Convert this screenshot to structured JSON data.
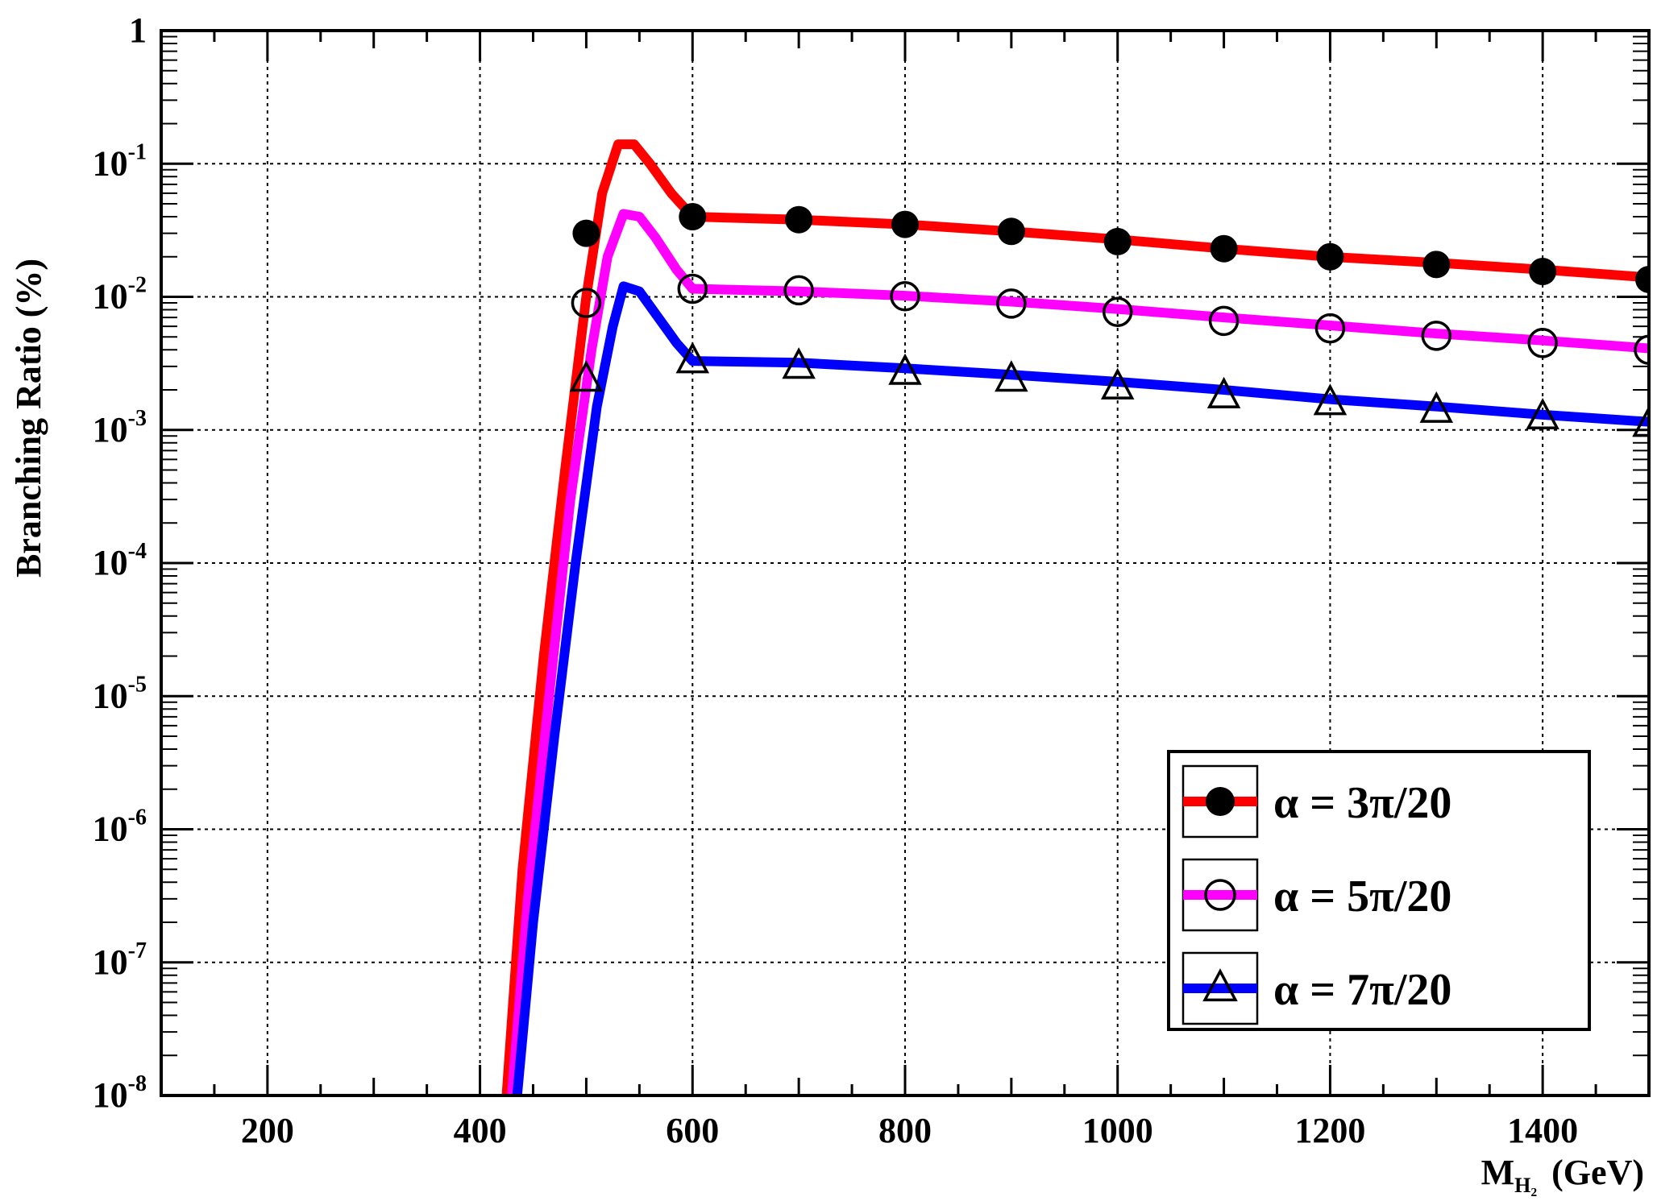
{
  "chart_data": {
    "type": "line",
    "title": "",
    "xlabel": {
      "main": "M",
      "sub": "H₂",
      "unit": "(GeV)"
    },
    "ylabel": "Branching Ratio (%)",
    "xlim": [
      100,
      1500
    ],
    "ylim": [
      1e-08,
      1
    ],
    "yscale": "log",
    "grid": true,
    "legend_position": "bottom-right",
    "xticks": [
      200,
      400,
      600,
      800,
      1000,
      1200,
      1400
    ],
    "xtick_labels": [
      "200",
      "400",
      "600",
      "800",
      "1000",
      "1200",
      "1400"
    ],
    "yticks": [
      {
        "value": 1,
        "base": "1",
        "exp": ""
      },
      {
        "value": 0.1,
        "base": "10",
        "exp": "-1"
      },
      {
        "value": 0.01,
        "base": "10",
        "exp": "-2"
      },
      {
        "value": 0.001,
        "base": "10",
        "exp": "-3"
      },
      {
        "value": 0.0001,
        "base": "10",
        "exp": "-4"
      },
      {
        "value": 1e-05,
        "base": "10",
        "exp": "-5"
      },
      {
        "value": 1e-06,
        "base": "10",
        "exp": "-6"
      },
      {
        "value": 1e-07,
        "base": "10",
        "exp": "-7"
      },
      {
        "value": 1e-08,
        "base": "10",
        "exp": "-8"
      }
    ],
    "series": [
      {
        "name": "α = 3π/20",
        "color": "#ff0000",
        "marker": "filled-circle",
        "curve": {
          "x": [
            425,
            440,
            460,
            480,
            500,
            515,
            530,
            545,
            560,
            580,
            600,
            700,
            800,
            900,
            1000,
            1100,
            1200,
            1300,
            1400,
            1500
          ],
          "y": [
            1e-08,
            5e-07,
            2e-05,
            0.0005,
            0.01,
            0.06,
            0.14,
            0.14,
            0.1,
            0.06,
            0.04,
            0.038,
            0.035,
            0.031,
            0.027,
            0.023,
            0.02,
            0.018,
            0.016,
            0.014
          ]
        },
        "points": {
          "x": [
            500,
            600,
            700,
            800,
            900,
            1000,
            1100,
            1200,
            1300,
            1400,
            1500
          ],
          "y": [
            0.03,
            0.04,
            0.038,
            0.035,
            0.031,
            0.026,
            0.023,
            0.02,
            0.0175,
            0.0155,
            0.0135
          ]
        }
      },
      {
        "name": "α = 5π/20",
        "color": "#ff00ff",
        "marker": "open-circle",
        "curve": {
          "x": [
            430,
            445,
            465,
            485,
            505,
            520,
            535,
            550,
            565,
            585,
            600,
            700,
            800,
            900,
            1000,
            1100,
            1200,
            1300,
            1400,
            1500
          ],
          "y": [
            1e-08,
            3e-07,
            1e-05,
            0.0003,
            0.004,
            0.02,
            0.042,
            0.04,
            0.028,
            0.016,
            0.0115,
            0.011,
            0.0102,
            0.0092,
            0.0081,
            0.007,
            0.0061,
            0.0053,
            0.0047,
            0.0041
          ]
        },
        "points": {
          "x": [
            500,
            600,
            700,
            800,
            900,
            1000,
            1100,
            1200,
            1300,
            1400,
            1500
          ],
          "y": [
            0.009,
            0.0115,
            0.0112,
            0.0101,
            0.0089,
            0.0077,
            0.0066,
            0.0058,
            0.0051,
            0.0045,
            0.004
          ]
        }
      },
      {
        "name": "α = 7π/20",
        "color": "#0000ff",
        "marker": "open-triangle",
        "curve": {
          "x": [
            435,
            450,
            470,
            490,
            510,
            525,
            535,
            550,
            565,
            585,
            600,
            700,
            800,
            900,
            1000,
            1100,
            1200,
            1300,
            1400,
            1500
          ],
          "y": [
            1e-08,
            2e-07,
            5e-06,
            0.0001,
            0.0015,
            0.006,
            0.012,
            0.011,
            0.0075,
            0.0045,
            0.0033,
            0.0032,
            0.0029,
            0.0026,
            0.0023,
            0.002,
            0.0017,
            0.0015,
            0.0013,
            0.00115
          ]
        },
        "points": {
          "x": [
            500,
            600,
            700,
            800,
            900,
            1000,
            1100,
            1200,
            1300,
            1400,
            1500
          ],
          "y": [
            0.0024,
            0.0033,
            0.003,
            0.0027,
            0.0024,
            0.0021,
            0.0018,
            0.0016,
            0.0014,
            0.00125,
            0.0011
          ]
        }
      }
    ]
  }
}
